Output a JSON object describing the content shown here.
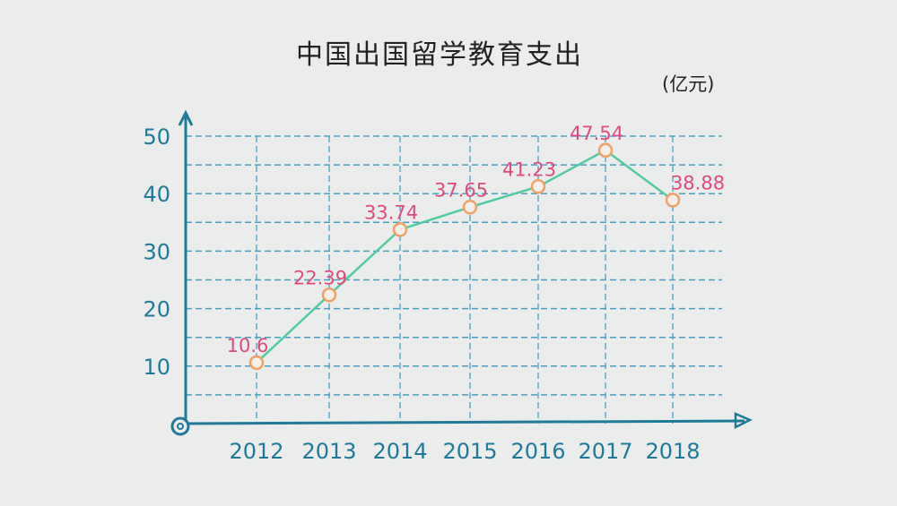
{
  "chart_data": {
    "type": "line",
    "title": "中国出国留学教育支出",
    "unit": "(亿元)",
    "categories": [
      "2012",
      "2013",
      "2014",
      "2015",
      "2016",
      "2017",
      "2018"
    ],
    "values": [
      10.6,
      22.39,
      33.74,
      37.65,
      41.23,
      47.54,
      38.88
    ],
    "data_labels": [
      "10.6",
      "22.39",
      "33.74",
      "37.65",
      "41.23",
      "47.54",
      "38.88"
    ],
    "yticks": [
      "10",
      "20",
      "30",
      "40",
      "50"
    ],
    "ylim": [
      0,
      50
    ],
    "grid": true,
    "colors": {
      "axis": "#1f7a9a",
      "grid": "#4a9ec0",
      "line": "#4fcb9f",
      "marker": "#f0a064",
      "label": "#e04a7c"
    }
  }
}
